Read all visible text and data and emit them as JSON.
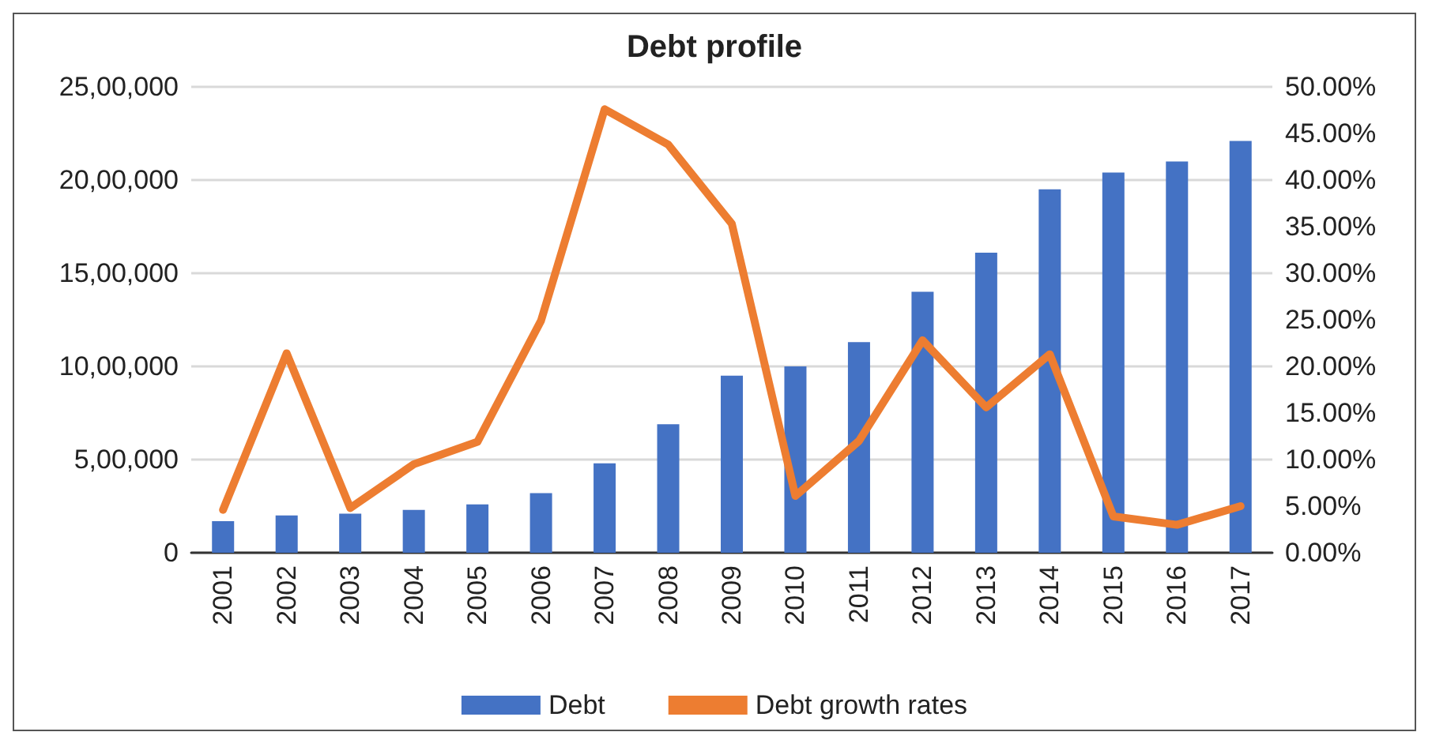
{
  "chart_data": {
    "type": "bar",
    "title": "Debt profile",
    "categories": [
      "2001",
      "2002",
      "2003",
      "2004",
      "2005",
      "2006",
      "2007",
      "2008",
      "2009",
      "2010",
      "2011",
      "2012",
      "2013",
      "2014",
      "2015",
      "2016",
      "2017"
    ],
    "series": [
      {
        "name": "Debt",
        "color": "#4472c4",
        "values": [
          170000,
          200000,
          210000,
          230000,
          260000,
          320000,
          480000,
          690000,
          950000,
          1000000,
          1130000,
          1400000,
          1610000,
          1950000,
          2040000,
          2100000,
          2210000
        ]
      },
      {
        "name": "Debt growth rates",
        "type": "line",
        "axis": "y2",
        "color": "#ed7d31",
        "values": [
          4.6,
          21.4,
          4.8,
          9.5,
          11.9,
          24.9,
          47.6,
          43.8,
          35.3,
          6.1,
          12.0,
          22.8,
          15.6,
          21.3,
          3.9,
          3.0,
          5.0
        ]
      }
    ],
    "ylim": [
      0,
      2500000
    ],
    "yticks": [
      {
        "value": 0,
        "label": "0"
      },
      {
        "value": 500000,
        "label": "5,00,000"
      },
      {
        "value": 1000000,
        "label": "10,00,000"
      },
      {
        "value": 1500000,
        "label": "15,00,000"
      },
      {
        "value": 2000000,
        "label": "20,00,000"
      },
      {
        "value": 2500000,
        "label": "25,00,000"
      }
    ],
    "y2lim": [
      0,
      50
    ],
    "y2ticks": [
      {
        "value": 0,
        "label": "0.00%"
      },
      {
        "value": 5,
        "label": "5.00%"
      },
      {
        "value": 10,
        "label": "10.00%"
      },
      {
        "value": 15,
        "label": "15.00%"
      },
      {
        "value": 20,
        "label": "20.00%"
      },
      {
        "value": 25,
        "label": "25.00%"
      },
      {
        "value": 30,
        "label": "30.00%"
      },
      {
        "value": 35,
        "label": "35.00%"
      },
      {
        "value": 40,
        "label": "40.00%"
      },
      {
        "value": 45,
        "label": "45.00%"
      },
      {
        "value": 50,
        "label": "50.00%"
      }
    ],
    "grid": "y",
    "legend": "bottom",
    "marker": "none",
    "line_style": "solid"
  }
}
